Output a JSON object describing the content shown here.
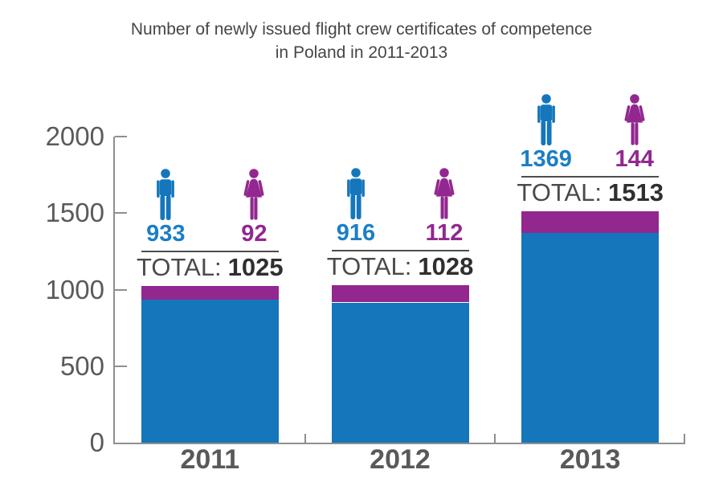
{
  "title": {
    "line1": "Number of newly issued flight crew certificates of competence",
    "line2": "in Poland in 2011-2013"
  },
  "colors": {
    "men_bar": "#1576bc",
    "men_text": "#1b7ec7",
    "women": "#92278f",
    "axis": "#8f8f8f",
    "tick_label": "#5a5a5a",
    "category_label": "#595959",
    "divider": "#4d4d4d",
    "total_label_color": "#4a4a4a",
    "total_value_color": "#2f2f2f",
    "title_color": "#464646"
  },
  "chart_data": {
    "type": "bar",
    "stacked": true,
    "title": "Number of newly issued flight crew certificates of competence in Poland in 2011-2013",
    "categories": [
      "2011",
      "2012",
      "2013"
    ],
    "series": [
      {
        "name": "Men",
        "icon": "man-icon",
        "color": "#1576bc",
        "text_color": "#1b7ec7",
        "values": [
          933,
          916,
          1369
        ]
      },
      {
        "name": "Women",
        "icon": "woman-icon",
        "color": "#92278f",
        "text_color": "#92278f",
        "values": [
          92,
          112,
          144
        ]
      }
    ],
    "totals": [
      1025,
      1028,
      1513
    ],
    "total_label": "TOTAL:",
    "xlabel": "",
    "ylabel": "",
    "ylim": [
      0,
      2000
    ],
    "yticks": [
      "0",
      "500",
      "1000",
      "1500",
      "2000"
    ],
    "grid": false,
    "legend": "none"
  }
}
